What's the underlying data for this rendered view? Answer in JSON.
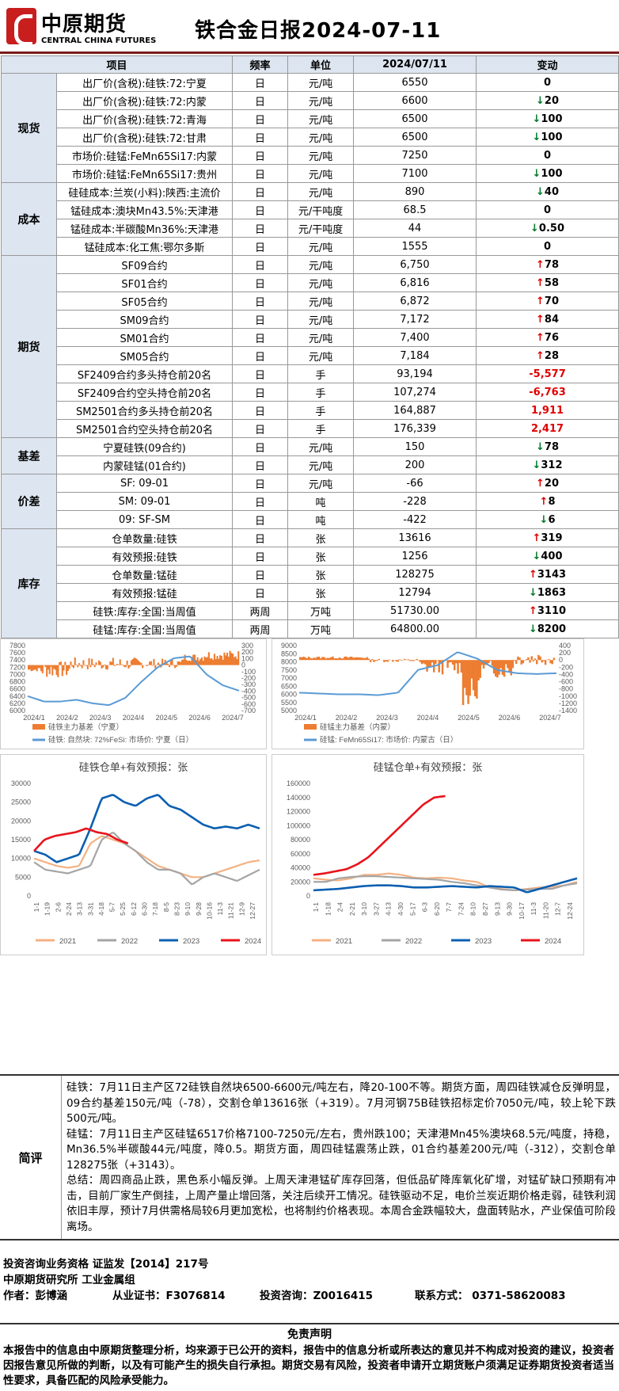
{
  "header": {
    "logo_cn": "中原期货",
    "logo_en": "CENTRAL CHINA FUTURES",
    "title": "铁合金日报2024-07-11"
  },
  "table": {
    "headers": [
      "项目",
      "频率",
      "单位",
      "2024/07/11",
      "变动"
    ],
    "groups": [
      {
        "name": "现货",
        "rows": [
          {
            "item": "出厂价(含税):硅铁:72:宁夏",
            "freq": "日",
            "unit": "元/吨",
            "value": "6550",
            "dir": "",
            "change": "0"
          },
          {
            "item": "出厂价(含税):硅铁:72:内蒙",
            "freq": "日",
            "unit": "元/吨",
            "value": "6600",
            "dir": "down",
            "change": "20"
          },
          {
            "item": "出厂价(含税):硅铁:72:青海",
            "freq": "日",
            "unit": "元/吨",
            "value": "6500",
            "dir": "down",
            "change": "100"
          },
          {
            "item": "出厂价(含税):硅铁:72:甘肃",
            "freq": "日",
            "unit": "元/吨",
            "value": "6500",
            "dir": "down",
            "change": "100"
          },
          {
            "item": "市场价:硅锰:FeMn65Si17:内蒙",
            "freq": "日",
            "unit": "元/吨",
            "value": "7250",
            "dir": "",
            "change": "0"
          },
          {
            "item": "市场价:硅锰:FeMn65Si17:贵州",
            "freq": "日",
            "unit": "元/吨",
            "value": "7100",
            "dir": "down",
            "change": "100"
          }
        ]
      },
      {
        "name": "成本",
        "rows": [
          {
            "item": "硅硅成本:兰炭(小料):陕西:主流价",
            "freq": "日",
            "unit": "元/吨",
            "value": "890",
            "dir": "down",
            "change": "40"
          },
          {
            "item": "锰硅成本:澳块Mn43.5%:天津港",
            "freq": "日",
            "unit": "元/干吨度",
            "value": "68.5",
            "dir": "",
            "change": "0"
          },
          {
            "item": "锰硅成本:半碳酸Mn36%:天津港",
            "freq": "日",
            "unit": "元/干吨度",
            "value": "44",
            "dir": "down",
            "change": "0.50"
          },
          {
            "item": "锰硅成本:化工焦:鄂尔多斯",
            "freq": "日",
            "unit": "元/吨",
            "value": "1555",
            "dir": "",
            "change": "0"
          }
        ]
      },
      {
        "name": "期货",
        "rows": [
          {
            "item": "SF09合约",
            "freq": "日",
            "unit": "元/吨",
            "value": "6,750",
            "dir": "up",
            "change": "78"
          },
          {
            "item": "SF01合约",
            "freq": "日",
            "unit": "元/吨",
            "value": "6,816",
            "dir": "up",
            "change": "58"
          },
          {
            "item": "SF05合约",
            "freq": "日",
            "unit": "元/吨",
            "value": "6,872",
            "dir": "up",
            "change": "70"
          },
          {
            "item": "SM09合约",
            "freq": "日",
            "unit": "元/吨",
            "value": "7,172",
            "dir": "up",
            "change": "84"
          },
          {
            "item": "SM01合约",
            "freq": "日",
            "unit": "元/吨",
            "value": "7,400",
            "dir": "up",
            "change": "76"
          },
          {
            "item": "SM05合约",
            "freq": "日",
            "unit": "元/吨",
            "value": "7,184",
            "dir": "up",
            "change": "28"
          },
          {
            "item": "SF2409合约多头持仓前20名",
            "freq": "日",
            "unit": "手",
            "value": "93,194",
            "dir": "red",
            "change": "-5,577"
          },
          {
            "item": "SF2409合约空头持仓前20名",
            "freq": "日",
            "unit": "手",
            "value": "107,274",
            "dir": "red",
            "change": "-6,763"
          },
          {
            "item": "SM2501合约多头持仓前20名",
            "freq": "日",
            "unit": "手",
            "value": "164,887",
            "dir": "red",
            "change": "1,911"
          },
          {
            "item": "SM2501合约空头持仓前20名",
            "freq": "日",
            "unit": "手",
            "value": "176,339",
            "dir": "red",
            "change": "2,417"
          }
        ]
      },
      {
        "name": "基差",
        "rows": [
          {
            "item": "宁夏硅铁(09合约)",
            "freq": "日",
            "unit": "元/吨",
            "value": "150",
            "dir": "down",
            "change": "78"
          },
          {
            "item": "内蒙硅锰(01合约)",
            "freq": "日",
            "unit": "元/吨",
            "value": "200",
            "dir": "down",
            "change": "312"
          }
        ]
      },
      {
        "name": "价差",
        "rows": [
          {
            "item": "SF: 09-01",
            "freq": "日",
            "unit": "元/吨",
            "value": "-66",
            "dir": "up",
            "change": "20"
          },
          {
            "item": "SM: 09-01",
            "freq": "日",
            "unit": "吨",
            "value": "-228",
            "dir": "up",
            "change": "8"
          },
          {
            "item": "09: SF-SM",
            "freq": "日",
            "unit": "吨",
            "value": "-422",
            "dir": "down",
            "change": "6"
          }
        ]
      },
      {
        "name": "库存",
        "rows": [
          {
            "item": "仓单数量:硅铁",
            "freq": "日",
            "unit": "张",
            "value": "13616",
            "dir": "up",
            "change": "319"
          },
          {
            "item": "有效预报:硅铁",
            "freq": "日",
            "unit": "张",
            "value": "1256",
            "dir": "down",
            "change": "400"
          },
          {
            "item": "仓单数量:锰硅",
            "freq": "日",
            "unit": "张",
            "value": "128275",
            "dir": "up",
            "change": "3143"
          },
          {
            "item": "有效预报:锰硅",
            "freq": "日",
            "unit": "张",
            "value": "12794",
            "dir": "down",
            "change": "1863"
          },
          {
            "item": "硅铁:库存:全国:当周值",
            "freq": "两周",
            "unit": "万吨",
            "value": "51730.00",
            "dir": "up",
            "change": "3110"
          },
          {
            "item": "硅锰:库存:全国:当周值",
            "freq": "两周",
            "unit": "万吨",
            "value": "64800.00",
            "dir": "down",
            "change": "8200"
          }
        ]
      }
    ]
  },
  "chart_data": [
    {
      "type": "line",
      "x": [
        "2024/1",
        "2024/2",
        "2024/3",
        "2024/4",
        "2024/5",
        "2024/6",
        "2024/7"
      ],
      "ylim": [
        6000,
        7800
      ],
      "y2lim": [
        -700,
        300
      ],
      "series": [
        {
          "name": "硅铁主力基差（宁夏）",
          "axis": "right",
          "kind": "bar"
        },
        {
          "name": "硅铁: 自然块: 72%FeSi: 市场价: 宁夏（日）",
          "axis": "left",
          "kind": "line"
        }
      ],
      "y_ticks": [
        "7800",
        "7600",
        "7400",
        "7200",
        "7000",
        "6800",
        "6600",
        "6400",
        "6200",
        "6000"
      ],
      "y2_ticks": [
        "300",
        "200",
        "100",
        "0",
        "-100",
        "-200",
        "-300",
        "-400",
        "-500",
        "-600",
        "-700"
      ]
    },
    {
      "type": "line",
      "x": [
        "2024/1",
        "2024/2",
        "2024/3",
        "2024/4",
        "2024/5",
        "2024/6",
        "2024/7"
      ],
      "ylim": [
        5000,
        9000
      ],
      "y2lim": [
        -1400,
        400
      ],
      "series": [
        {
          "name": "硅锰主力基差（内蒙）",
          "axis": "right",
          "kind": "bar"
        },
        {
          "name": "硅锰: FeMn65Si17: 市场价: 内蒙古（日）",
          "axis": "left",
          "kind": "line"
        }
      ],
      "y_ticks": [
        "9000",
        "8500",
        "8000",
        "7500",
        "7000",
        "6500",
        "6000",
        "5500",
        "5000"
      ],
      "y2_ticks": [
        "400",
        "200",
        "0",
        "-200",
        "-400",
        "-600",
        "-800",
        "-1000",
        "-1200",
        "-1400"
      ]
    },
    {
      "type": "line",
      "title": "硅铁仓单+有效预报：张",
      "ylim": [
        0,
        30000
      ],
      "x": [
        "1-1",
        "1-19",
        "2-6",
        "2-24",
        "3-13",
        "3-31",
        "4-18",
        "5-7",
        "5-25",
        "6-12",
        "6-30",
        "7-18",
        "8-5",
        "8-23",
        "9-10",
        "9-28",
        "10-16",
        "11-3",
        "11-21",
        "12-9",
        "12-27"
      ],
      "y_ticks": [
        "30000",
        "25000",
        "20000",
        "15000",
        "10000",
        "5000",
        "0"
      ],
      "series": [
        {
          "name": "2021"
        },
        {
          "name": "2022"
        },
        {
          "name": "2023"
        },
        {
          "name": "2024"
        }
      ]
    },
    {
      "type": "line",
      "title": "硅锰仓单+有效预报：张",
      "ylim": [
        0,
        160000
      ],
      "x": [
        "1-1",
        "1-18",
        "2-4",
        "2-21",
        "3-10",
        "3-27",
        "4-13",
        "4-30",
        "5-17",
        "6-3",
        "6-20",
        "7-7",
        "7-24",
        "8-10",
        "8-27",
        "9-13",
        "9-30",
        "10-17",
        "11-3",
        "11-20",
        "12-7",
        "12-24"
      ],
      "y_ticks": [
        "160000",
        "140000",
        "120000",
        "100000",
        "80000",
        "60000",
        "40000",
        "20000",
        "0"
      ],
      "series": [
        {
          "name": "2021"
        },
        {
          "name": "2022"
        },
        {
          "name": "2023"
        },
        {
          "name": "2024"
        }
      ]
    }
  ],
  "comment": {
    "label": "简评",
    "p1": "硅铁：7月11日主产区72硅铁自然块6500-6600元/吨左右，降20-100不等。期货方面，周四硅铁减仓反弹明显，09合约基差150元/吨（-78），交割仓单13616张（+319）。7月河钢75B硅铁招标定价7050元/吨，较上轮下跌500元/吨。",
    "p2": "硅锰：7月11日主产区硅锰6517价格7100-7250元/左右，贵州跌100；天津港Mn45%澳块68.5元/吨度，持稳，Mn36.5%半碳酸44元/吨度，降0.5。期货方面，周四硅锰震荡止跌，01合约基差200元/吨（-312），交割仓单128275张（+3143）。",
    "p3": "总结：周四商品止跌，黑色系小幅反弹。上周天津港锰矿库存回落，但低品矿降库氧化矿增，对锰矿缺口预期有冲击，目前厂家生产倒挂，上周产量止增回落，关注后续开工情况。硅铁驱动不足，电价兰炭近期价格走弱，硅铁利润依旧丰厚，预计7月供需格局较6月更加宽松，也将制约价格表现。本周合金跌幅较大，盘面转贴水，产业保值可阶段离场。"
  },
  "footer": {
    "l1": "投资咨询业务资格   证监发【2014】217号",
    "l2": "中原期货研究所    工业金属组",
    "author": "作者：彭博涵",
    "cert": "从业证书：F3076814",
    "consult": "投资咨询：Z0016415",
    "contact": "联系方式：  0371-58620083"
  },
  "disclaimer": {
    "title": "免责声明",
    "body": "本报告中的信息由中原期货整理分析，均来源于已公开的资料，报告中的信息分析或所表达的意见并不构成对投资的建议，投资者因报告意见所做的判断，以及有可能产生的损失自行承担。期货交易有风险，投资者申请开立期货账户须满足证券期货投资者适当性要求，具备匹配的风险承受能力。"
  },
  "colors": {
    "orange": "#ed7d31",
    "blue": "#5b9bd5",
    "gray": "#a5a5a5",
    "navy": "#0b5fb1",
    "red": "#e8141c",
    "peach": "#f4b183",
    "up": "#e00000",
    "down": "#007a2a"
  }
}
